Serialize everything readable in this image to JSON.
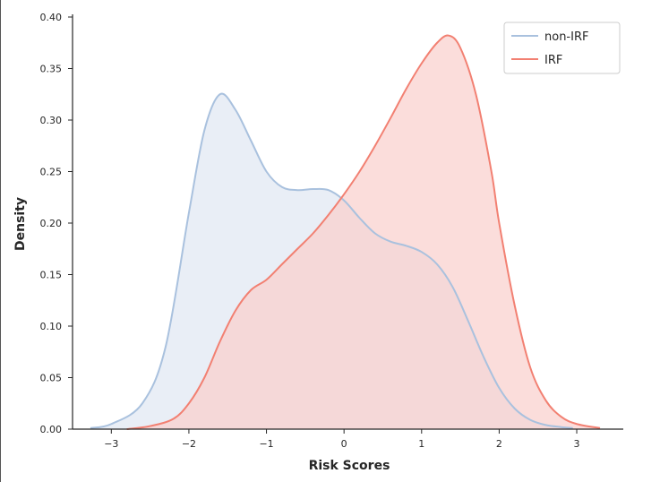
{
  "chart_data": {
    "type": "area",
    "title": "",
    "xlabel": "Risk Scores",
    "ylabel": "Density",
    "xlim": [
      -3.5,
      3.6
    ],
    "ylim": [
      0.0,
      0.4
    ],
    "xticks": [
      -3,
      -2,
      -1,
      0,
      1,
      2,
      3
    ],
    "xtick_labels": [
      "−3",
      "−2",
      "−1",
      "0",
      "1",
      "2",
      "3"
    ],
    "yticks": [
      0.0,
      0.05,
      0.1,
      0.15,
      0.2,
      0.25,
      0.3,
      0.35,
      0.4
    ],
    "ytick_labels": [
      "0.00",
      "0.05",
      "0.10",
      "0.15",
      "0.20",
      "0.25",
      "0.30",
      "0.35",
      "0.40"
    ],
    "grid": false,
    "legend_position": "top-right",
    "series": [
      {
        "name": "non-IRF",
        "color": "#a9c1de",
        "fill": "#e9eef6",
        "x": [
          -3.27,
          -3.0,
          -2.6,
          -2.3,
          -2.0,
          -1.8,
          -1.6,
          -1.4,
          -1.2,
          -1.0,
          -0.8,
          -0.6,
          -0.4,
          -0.2,
          0.0,
          0.2,
          0.4,
          0.6,
          0.8,
          1.0,
          1.2,
          1.4,
          1.6,
          1.8,
          2.0,
          2.2,
          2.4,
          2.6,
          2.8,
          2.95
        ],
        "y": [
          0.001,
          0.005,
          0.025,
          0.08,
          0.21,
          0.29,
          0.325,
          0.31,
          0.28,
          0.25,
          0.235,
          0.232,
          0.233,
          0.232,
          0.222,
          0.205,
          0.19,
          0.182,
          0.178,
          0.172,
          0.16,
          0.138,
          0.105,
          0.07,
          0.04,
          0.02,
          0.009,
          0.004,
          0.002,
          0.001
        ]
      },
      {
        "name": "IRF",
        "color": "#f28072",
        "fill": "#f9cfcc",
        "x": [
          -2.8,
          -2.5,
          -2.2,
          -2.0,
          -1.8,
          -1.6,
          -1.4,
          -1.2,
          -1.0,
          -0.8,
          -0.6,
          -0.4,
          -0.2,
          0.0,
          0.2,
          0.4,
          0.6,
          0.8,
          1.0,
          1.2,
          1.35,
          1.5,
          1.7,
          1.9,
          2.0,
          2.2,
          2.4,
          2.6,
          2.8,
          3.0,
          3.3
        ],
        "y": [
          0.0,
          0.003,
          0.01,
          0.025,
          0.05,
          0.085,
          0.115,
          0.135,
          0.145,
          0.16,
          0.175,
          0.19,
          0.208,
          0.228,
          0.25,
          0.275,
          0.302,
          0.33,
          0.355,
          0.375,
          0.382,
          0.37,
          0.325,
          0.25,
          0.2,
          0.12,
          0.06,
          0.028,
          0.012,
          0.005,
          0.001
        ]
      }
    ]
  }
}
